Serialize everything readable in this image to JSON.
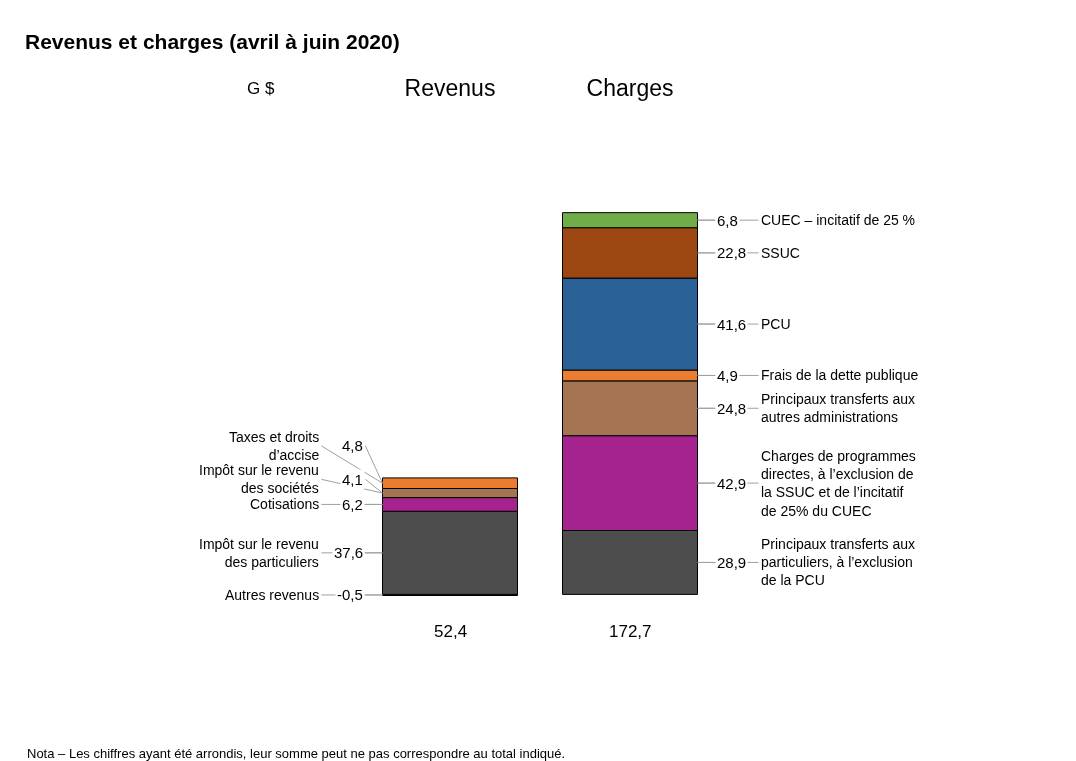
{
  "chart_data": {
    "type": "bar",
    "title": "Revenus et charges (avril à juin 2020)",
    "categories": [
      "Revenus",
      "Charges"
    ],
    "stacked": true,
    "legend": false,
    "series": [
      {
        "name": "Autres revenus",
        "color": "#4d4d4d",
        "values": [
          -0.5,
          null
        ],
        "value_labels": [
          "-0,5",
          null
        ]
      },
      {
        "name": "Impôt sur le revenu des particuliers",
        "color": "#4d4d4d",
        "values": [
          37.6,
          null
        ],
        "value_labels": [
          "37,6",
          null
        ]
      },
      {
        "name": "Cotisations",
        "color": "#a4238e",
        "values": [
          6.2,
          null
        ],
        "value_labels": [
          "6,2",
          null
        ]
      },
      {
        "name": "Impôt sur le revenu des sociétés",
        "color": "#a57453",
        "values": [
          4.1,
          null
        ],
        "value_labels": [
          "4,1",
          null
        ]
      },
      {
        "name": "Taxes et droits d’accise",
        "color": "#ec7c30",
        "values": [
          4.8,
          null
        ],
        "value_labels": [
          "4,8",
          null
        ]
      },
      {
        "name": "Principaux transferts aux particuliers, à l’exclusion de la PCU",
        "color": "#4d4d4d",
        "values": [
          null,
          28.9
        ],
        "value_labels": [
          null,
          "28,9"
        ]
      },
      {
        "name": "Charges de programmes directes, à l’exclusion de la SSUC et de l’incitatif de 25% du CUEC",
        "color": "#a4238e",
        "values": [
          null,
          42.9
        ],
        "value_labels": [
          null,
          "42,9"
        ]
      },
      {
        "name": "Principaux transferts aux autres administrations",
        "color": "#a57453",
        "values": [
          null,
          24.8
        ],
        "value_labels": [
          null,
          "24,8"
        ]
      },
      {
        "name": "Frais de la dette publique",
        "color": "#ec7c30",
        "values": [
          null,
          4.9
        ],
        "value_labels": [
          null,
          "4,9"
        ]
      },
      {
        "name": "PCU",
        "color": "#2a6196",
        "values": [
          null,
          41.6
        ],
        "value_labels": [
          null,
          "41,6"
        ]
      },
      {
        "name": "SSUC",
        "color": "#9c4712",
        "values": [
          null,
          22.8
        ],
        "value_labels": [
          null,
          "22,8"
        ]
      },
      {
        "name": "CUEC – incitatif de 25 %",
        "color": "#70ad47",
        "values": [
          null,
          6.8
        ],
        "value_labels": [
          null,
          "6,8"
        ]
      }
    ],
    "totals": [
      "52,4",
      "172,7"
    ],
    "annotations": [
      "G $",
      "Nota – Les chiffres ayant été arrondis, leur somme peut ne pas correspondre au total indiqué."
    ]
  }
}
